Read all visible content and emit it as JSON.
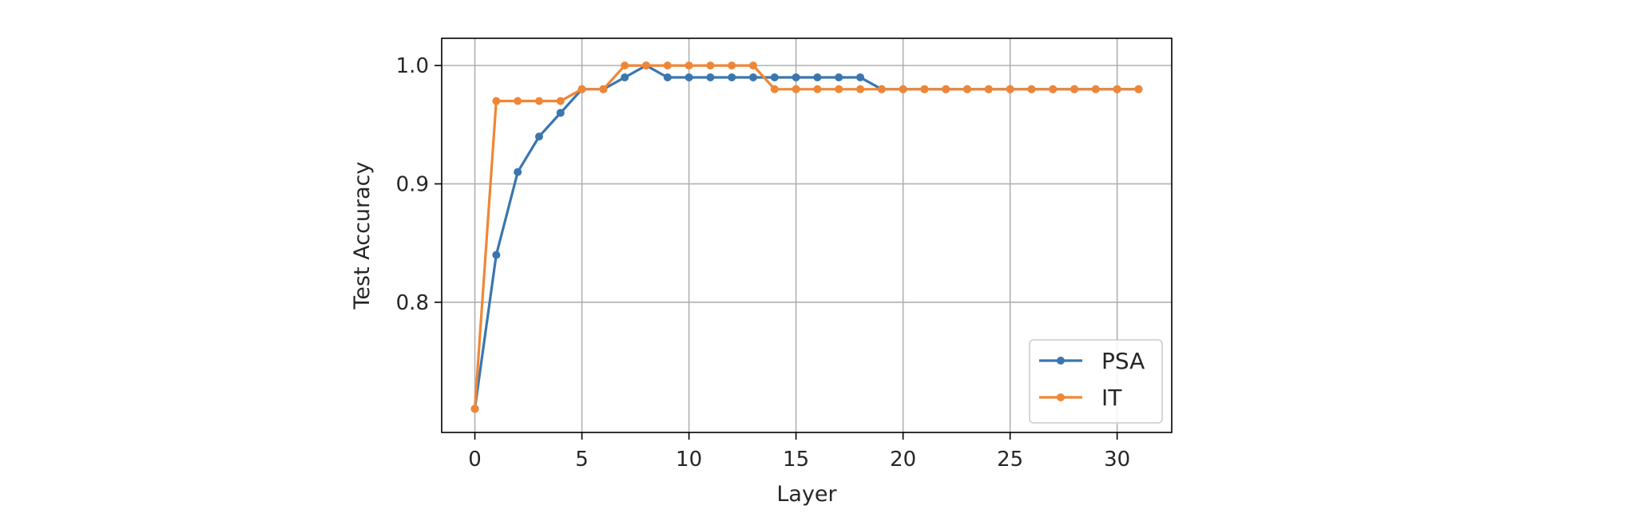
{
  "chart_data": {
    "type": "line",
    "title": "",
    "xlabel": "Layer",
    "ylabel": "Test Accuracy",
    "xlim": [
      -1.55,
      32.55
    ],
    "ylim": [
      0.69,
      1.023
    ],
    "xticks": [
      0,
      5,
      10,
      15,
      20,
      25,
      30
    ],
    "yticks": [
      0.8,
      0.9,
      1.0
    ],
    "xtick_labels": [
      "0",
      "5",
      "10",
      "15",
      "20",
      "25",
      "30"
    ],
    "ytick_labels": [
      "0.8",
      "0.9",
      "1.0"
    ],
    "grid": true,
    "legend": "lower-right",
    "x": [
      0,
      1,
      2,
      3,
      4,
      5,
      6,
      7,
      8,
      9,
      10,
      11,
      12,
      13,
      14,
      15,
      16,
      17,
      18,
      19,
      20,
      21,
      22,
      23,
      24,
      25,
      26,
      27,
      28,
      29,
      30,
      31
    ],
    "series": [
      {
        "name": "PSA",
        "color": "#3a76af",
        "values": [
          0.71,
          0.84,
          0.91,
          0.94,
          0.96,
          0.98,
          0.98,
          0.99,
          1.0,
          0.99,
          0.99,
          0.99,
          0.99,
          0.99,
          0.99,
          0.99,
          0.99,
          0.99,
          0.99,
          0.98,
          0.98,
          0.98,
          0.98,
          0.98,
          0.98,
          0.98,
          0.98,
          0.98,
          0.98,
          0.98,
          0.98,
          0.98
        ]
      },
      {
        "name": "IT",
        "color": "#ef8636",
        "values": [
          0.71,
          0.97,
          0.97,
          0.97,
          0.97,
          0.98,
          0.98,
          1.0,
          1.0,
          1.0,
          1.0,
          1.0,
          1.0,
          1.0,
          0.98,
          0.98,
          0.98,
          0.98,
          0.98,
          0.98,
          0.98,
          0.98,
          0.98,
          0.98,
          0.98,
          0.98,
          0.98,
          0.98,
          0.98,
          0.98,
          0.98,
          0.98
        ]
      }
    ]
  }
}
